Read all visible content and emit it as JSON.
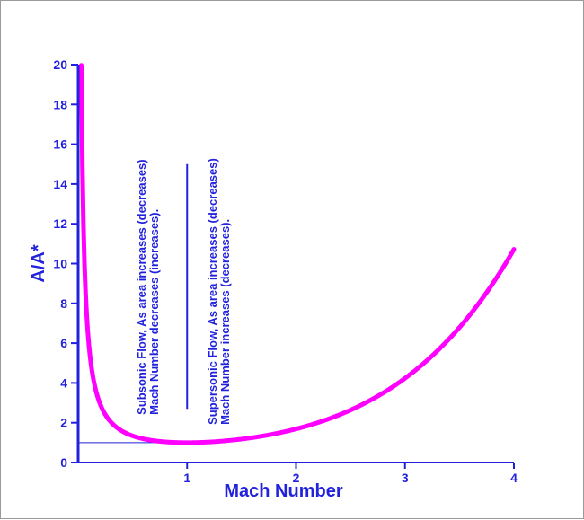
{
  "chart_data": {
    "type": "line",
    "title": "",
    "xlabel": "Mach Number",
    "ylabel": "A/A*",
    "xlim": [
      0,
      4
    ],
    "ylim": [
      0,
      20
    ],
    "x_ticks": [
      1,
      2,
      3,
      4
    ],
    "y_ticks": [
      0,
      2,
      4,
      6,
      8,
      10,
      12,
      14,
      16,
      18,
      20
    ],
    "grid": false,
    "gamma": 1.4,
    "series": [
      {
        "color": "#ff00ff",
        "x_range": [
          0.029,
          4.0
        ],
        "x": [
          0.03,
          0.05,
          0.1,
          0.2,
          0.3,
          0.5,
          0.7,
          1.0,
          1.5,
          2.0,
          2.5,
          3.0,
          3.5,
          4.0
        ],
        "y": [
          19.3,
          11.59,
          5.82,
          2.964,
          2.035,
          1.34,
          1.094,
          1.0,
          1.176,
          1.688,
          2.637,
          4.235,
          6.79,
          10.72
        ]
      }
    ],
    "reference_lines": [
      {
        "kind": "horizontal",
        "y": 1.0,
        "x_from": 0,
        "x_to": 1.0,
        "color": "#2222dd"
      },
      {
        "kind": "vertical",
        "x": 1.0,
        "y_from": 2.7,
        "y_to": 15.0,
        "color": "#2222dd"
      }
    ],
    "annotations": [
      {
        "region": "subsonic",
        "x": 0.62,
        "y": 2.4,
        "lines": [
          "Subsonic Flow, As area increases (decreases)",
          "Mach Number decreases (increases)."
        ]
      },
      {
        "region": "supersonic",
        "x": 1.27,
        "y": 1.9,
        "lines": [
          "Supersonic Flow, As area increases (decreases)",
          "Mach Number  increases (decreases)."
        ]
      }
    ],
    "colors": {
      "axis": "#2222dd",
      "curve": "#ff00ff",
      "text": "#2222dd",
      "frame": "#9a9a9a"
    }
  }
}
